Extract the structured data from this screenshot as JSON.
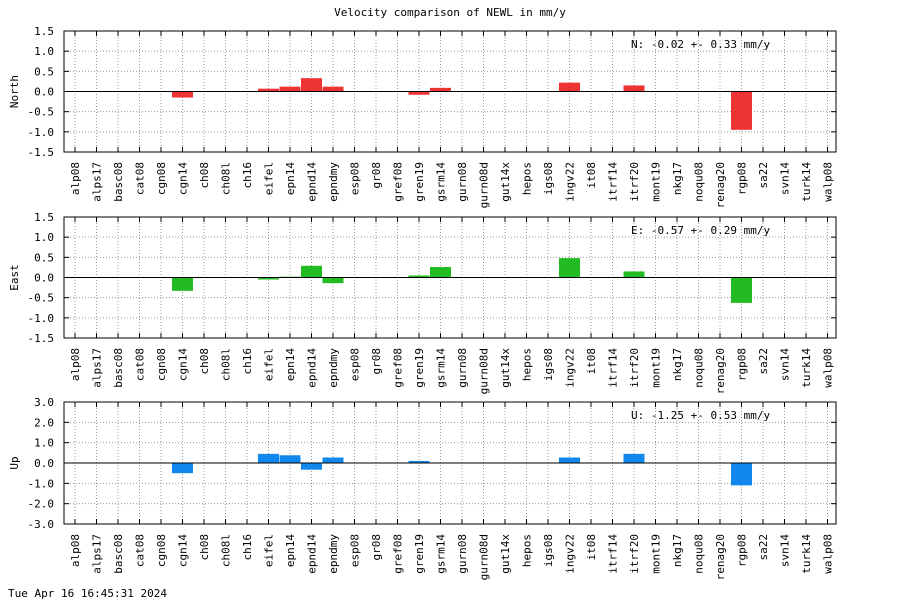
{
  "title": "Velocity comparison of NEWL in mm/y",
  "timestamp": "Tue Apr 16 16:45:31 2024",
  "colors": {
    "north": "#ee3333",
    "east": "#22bb22",
    "up": "#1188ee"
  },
  "chart_data": [
    {
      "type": "bar",
      "ylabel": "North",
      "annotation": "N:  -0.02 +-  0.33 mm/y",
      "ylim": [
        -1.5,
        1.5
      ],
      "yticks": [
        "1.5",
        "1.0",
        "0.5",
        "0.0",
        "-0.5",
        "-1.0",
        "-1.5"
      ],
      "grid": true,
      "categories": [
        "alp08",
        "alps17",
        "basc08",
        "cat08",
        "cgn08",
        "cgn14",
        "ch08",
        "ch08l",
        "ch16",
        "eifel",
        "epn14",
        "epnd14",
        "epndmy",
        "esp08",
        "gr08",
        "gref08",
        "gren19",
        "gsrm14",
        "gurn08",
        "gurn08d",
        "gut14x",
        "hepos",
        "igs08",
        "ingv22",
        "it08",
        "itrf14",
        "itrf20",
        "mont19",
        "nkg17",
        "noqu08",
        "renag20",
        "rgp08",
        "sa22",
        "svn14",
        "turk14",
        "walp08"
      ],
      "values": [
        null,
        null,
        null,
        null,
        null,
        -0.15,
        null,
        null,
        null,
        0.07,
        0.12,
        0.33,
        0.12,
        null,
        null,
        null,
        -0.08,
        0.09,
        null,
        null,
        null,
        null,
        null,
        0.22,
        null,
        null,
        0.15,
        null,
        null,
        null,
        null,
        -0.95,
        null,
        null,
        null,
        null
      ]
    },
    {
      "type": "bar",
      "ylabel": "East",
      "annotation": "E:  -0.57 +-  0.29 mm/y",
      "ylim": [
        -1.5,
        1.5
      ],
      "yticks": [
        "1.5",
        "1.0",
        "0.5",
        "0.0",
        "-0.5",
        "-1.0",
        "-1.5"
      ],
      "grid": true,
      "categories": [
        "alp08",
        "alps17",
        "basc08",
        "cat08",
        "cgn08",
        "cgn14",
        "ch08",
        "ch08l",
        "ch16",
        "eifel",
        "epn14",
        "epnd14",
        "epndmy",
        "esp08",
        "gr08",
        "gref08",
        "gren19",
        "gsrm14",
        "gurn08",
        "gurn08d",
        "gut14x",
        "hepos",
        "igs08",
        "ingv22",
        "it08",
        "itrf14",
        "itrf20",
        "mont19",
        "nkg17",
        "noqu08",
        "renag20",
        "rgp08",
        "sa22",
        "svn14",
        "turk14",
        "walp08"
      ],
      "values": [
        null,
        null,
        null,
        null,
        null,
        -0.33,
        null,
        null,
        null,
        -0.05,
        0.02,
        0.29,
        -0.14,
        null,
        null,
        null,
        0.05,
        0.26,
        null,
        null,
        null,
        null,
        null,
        0.48,
        null,
        null,
        0.15,
        null,
        null,
        null,
        null,
        -0.63,
        null,
        null,
        null,
        null
      ]
    },
    {
      "type": "bar",
      "ylabel": "Up",
      "annotation": "U:  -1.25 +-  0.53 mm/y",
      "ylim": [
        -3.0,
        3.0
      ],
      "yticks": [
        "3.0",
        "2.0",
        "1.0",
        "0.0",
        "-1.0",
        "-2.0",
        "-3.0"
      ],
      "grid": true,
      "categories": [
        "alp08",
        "alps17",
        "basc08",
        "cat08",
        "cgn08",
        "cgn14",
        "ch08",
        "ch08l",
        "ch16",
        "eifel",
        "epn14",
        "epnd14",
        "epndmy",
        "esp08",
        "gr08",
        "gref08",
        "gren19",
        "gsrm14",
        "gurn08",
        "gurn08d",
        "gut14x",
        "hepos",
        "igs08",
        "ingv22",
        "it08",
        "itrf14",
        "itrf20",
        "mont19",
        "nkg17",
        "noqu08",
        "renag20",
        "rgp08",
        "sa22",
        "svn14",
        "turk14",
        "walp08"
      ],
      "values": [
        null,
        null,
        null,
        null,
        null,
        -0.5,
        null,
        null,
        null,
        0.45,
        0.38,
        -0.33,
        0.27,
        null,
        null,
        null,
        0.1,
        null,
        null,
        null,
        null,
        null,
        null,
        0.27,
        null,
        null,
        0.45,
        null,
        null,
        null,
        null,
        -1.1,
        null,
        null,
        null,
        null
      ]
    }
  ]
}
